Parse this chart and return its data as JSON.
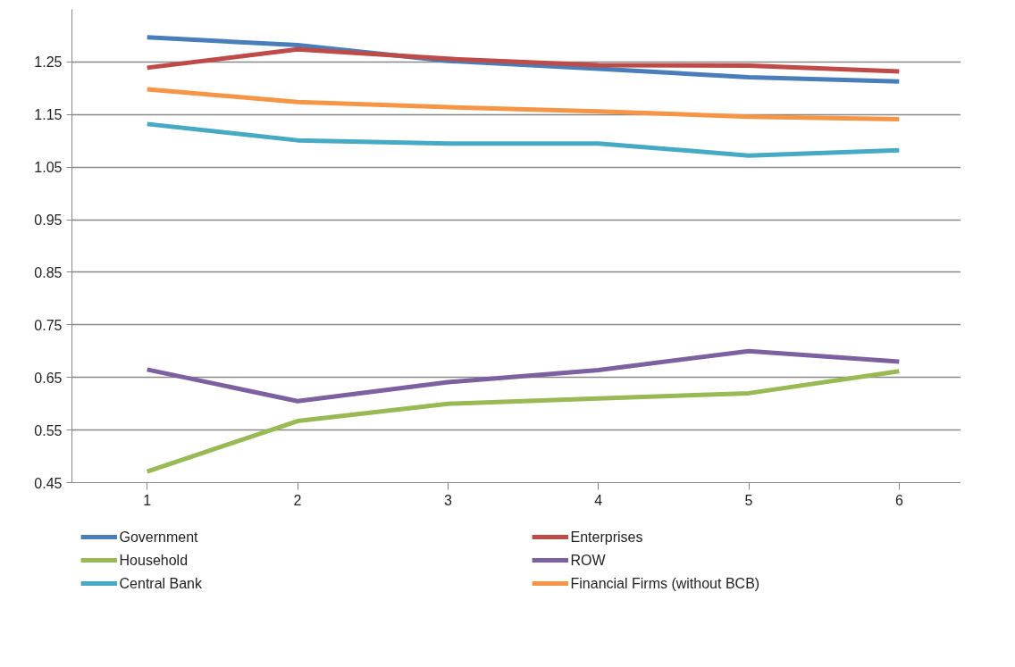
{
  "chart_data": {
    "type": "line",
    "categories": [
      "1",
      "2",
      "3",
      "4",
      "5",
      "6"
    ],
    "ylim": [
      0.45,
      1.35
    ],
    "yticks": [
      0.45,
      0.55,
      0.65,
      0.75,
      0.85,
      0.95,
      1.05,
      1.15,
      1.25
    ],
    "grid": "y",
    "legend": "bottom",
    "marker": "none",
    "line_style": "solid",
    "series": [
      {
        "name": "Government",
        "color": "#4a7ebb",
        "values": [
          1.297,
          1.282,
          1.252,
          1.237,
          1.221,
          1.213
        ]
      },
      {
        "name": "Enterprises",
        "color": "#be4b48",
        "values": [
          1.239,
          1.274,
          1.256,
          1.244,
          1.243,
          1.232
        ]
      },
      {
        "name": "Household",
        "color": "#98b954",
        "values": [
          0.471,
          0.567,
          0.6,
          0.61,
          0.62,
          0.662
        ]
      },
      {
        "name": "ROW",
        "color": "#7d60a0",
        "values": [
          0.665,
          0.605,
          0.641,
          0.664,
          0.7,
          0.68
        ]
      },
      {
        "name": "Central Bank",
        "color": "#46aac5",
        "values": [
          1.132,
          1.101,
          1.095,
          1.095,
          1.072,
          1.082
        ]
      },
      {
        "name": "Financial Firms (without BCB)",
        "color": "#f69546",
        "values": [
          1.198,
          1.174,
          1.164,
          1.156,
          1.146,
          1.141
        ]
      }
    ]
  }
}
